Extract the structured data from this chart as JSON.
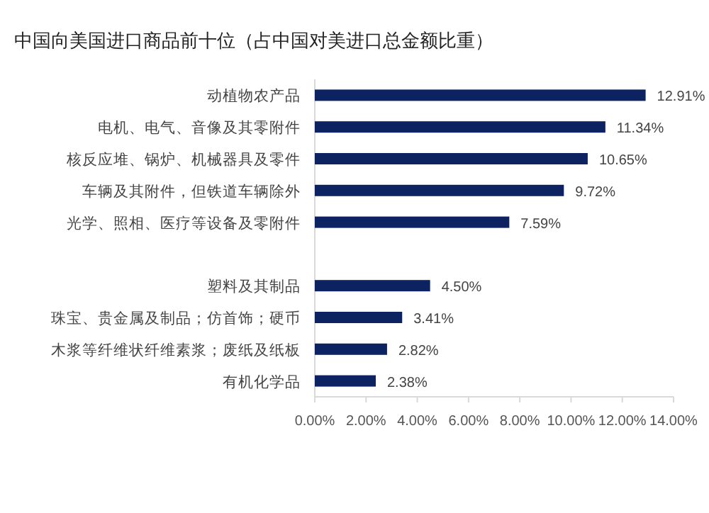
{
  "chart_data": {
    "type": "bar",
    "orientation": "horizontal",
    "title": "中国向美国进口商品前十位（占中国对美进口总金额比重）",
    "categories": [
      "动植物农产品",
      "电机、电气、音像及其零附件",
      "核反应堆、锅炉、机械器具及零件",
      "车辆及其附件，但铁道车辆除外",
      "光学、照相、医疗等设备及零附件",
      null,
      "塑料及其制品",
      "珠宝、贵金属及制品；仿首饰；硬币",
      "木浆等纤维状纤维素浆；废纸及纸板",
      "有机化学品"
    ],
    "values": [
      12.91,
      11.34,
      10.65,
      9.72,
      7.59,
      null,
      4.5,
      3.41,
      2.82,
      2.38
    ],
    "value_labels": [
      "12.91%",
      "11.34%",
      "10.65%",
      "9.72%",
      "7.59%",
      null,
      "4.50%",
      "3.41%",
      "2.82%",
      "2.38%"
    ],
    "color": "#0d2260",
    "xlim": [
      0,
      14
    ],
    "xticks": [
      {
        "value": 0,
        "label": "0.00%"
      },
      {
        "value": 2,
        "label": "2.00%"
      },
      {
        "value": 4,
        "label": "4.00%"
      },
      {
        "value": 6,
        "label": "6.00%"
      },
      {
        "value": 8,
        "label": "8.00%"
      },
      {
        "value": 10,
        "label": "10.00%"
      },
      {
        "value": 12,
        "label": "12.00%"
      },
      {
        "value": 14,
        "label": "14.00%"
      }
    ]
  }
}
